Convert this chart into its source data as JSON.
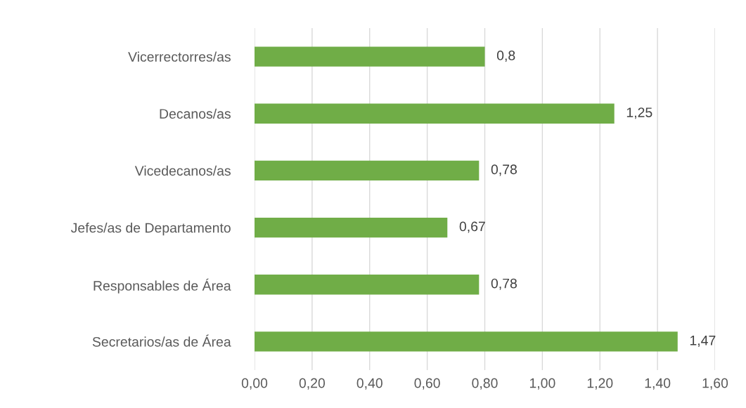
{
  "chart_data": {
    "type": "bar",
    "orientation": "horizontal",
    "categories": [
      "Vicerrectorres/as",
      "Decanos/as",
      "Vicedecanos/as",
      "Jefes/as de Departamento",
      "Responsables de Área",
      "Secretarios/as de Área"
    ],
    "values": [
      0.8,
      1.25,
      0.78,
      0.67,
      0.78,
      1.47
    ],
    "value_labels": [
      "0,8",
      "1,25",
      "0,78",
      "0,67",
      "0,78",
      "1,47"
    ],
    "color": "#70ad47",
    "xlim": [
      0,
      1.6
    ],
    "xticks": [
      {
        "value": 0,
        "label": "0,00"
      },
      {
        "value": 0.2,
        "label": "0,20"
      },
      {
        "value": 0.4,
        "label": "0,40"
      },
      {
        "value": 0.6,
        "label": "0,60"
      },
      {
        "value": 0.8,
        "label": "0,80"
      },
      {
        "value": 1.0,
        "label": "1,00"
      },
      {
        "value": 1.2,
        "label": "1,20"
      },
      {
        "value": 1.4,
        "label": "1,40"
      },
      {
        "value": 1.6,
        "label": "1,60"
      }
    ],
    "grid": "x",
    "legend": false
  }
}
